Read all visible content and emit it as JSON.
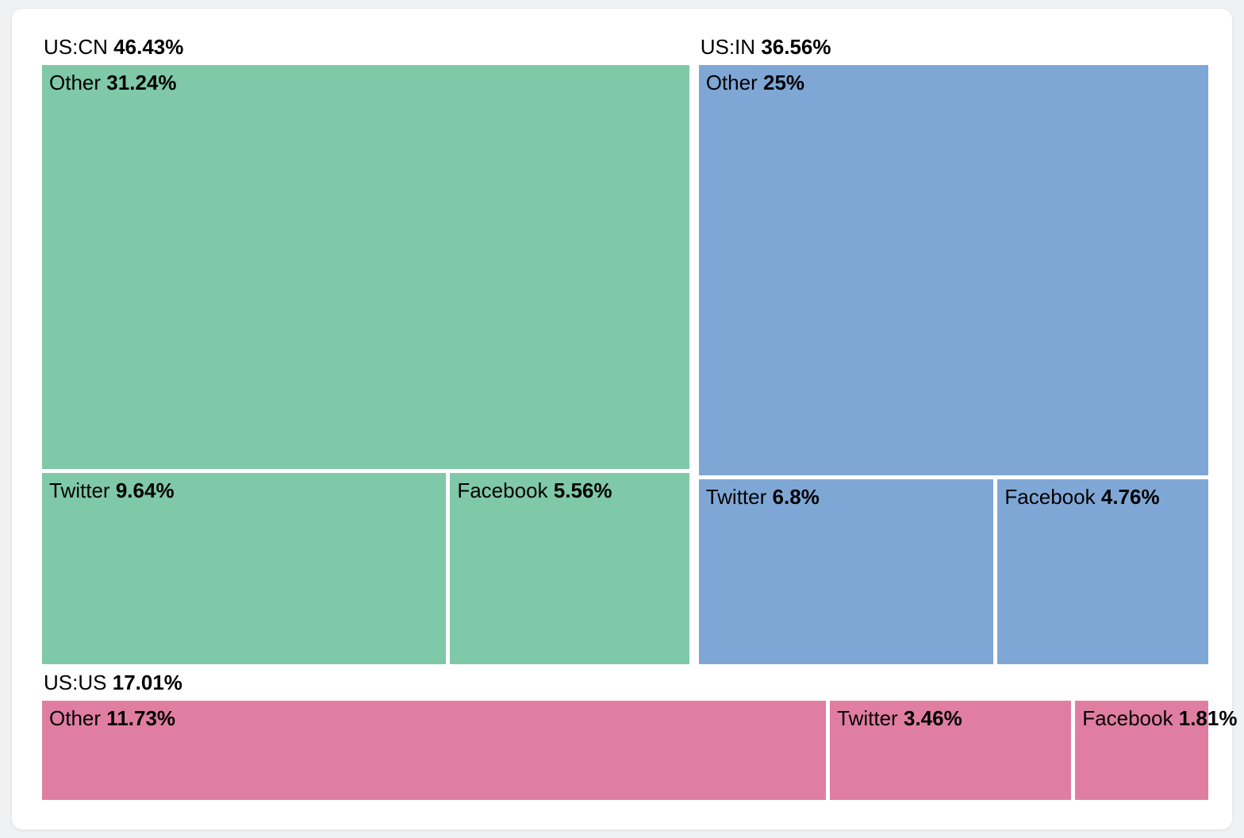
{
  "chart_data": {
    "type": "treemap",
    "title": "",
    "legend": "none",
    "value_format": "percent",
    "groups": [
      {
        "label": "US:CN",
        "value_label": "46.43%",
        "share": 46.43,
        "color": "#7fc8a8",
        "children": [
          {
            "label": "Other",
            "value_label": "31.24%",
            "share": 31.24
          },
          {
            "label": "Twitter",
            "value_label": "9.64%",
            "share": 9.64
          },
          {
            "label": "Facebook",
            "value_label": "5.56%",
            "share": 5.56
          }
        ]
      },
      {
        "label": "US:IN",
        "value_label": "36.56%",
        "share": 36.56,
        "color": "#7fa7d6",
        "children": [
          {
            "label": "Other",
            "value_label": "25%",
            "share": 25
          },
          {
            "label": "Twitter",
            "value_label": "6.8%",
            "share": 6.8
          },
          {
            "label": "Facebook",
            "value_label": "4.76%",
            "share": 4.76
          }
        ]
      },
      {
        "label": "US:US",
        "value_label": "17.01%",
        "share": 17.01,
        "color": "#e07ea1",
        "children": [
          {
            "label": "Other",
            "value_label": "11.73%",
            "share": 11.73
          },
          {
            "label": "Twitter",
            "value_label": "3.46%",
            "share": 3.46
          },
          {
            "label": "Facebook",
            "value_label": "1.81%",
            "share": 1.81
          }
        ]
      }
    ],
    "layout": {
      "row_shares": [
        82.99,
        17.01
      ],
      "subrow_shares": [
        15.2,
        11.56
      ],
      "text_color": "#000000",
      "background": "#ffffff",
      "page_background": "#f0f1f3"
    }
  }
}
